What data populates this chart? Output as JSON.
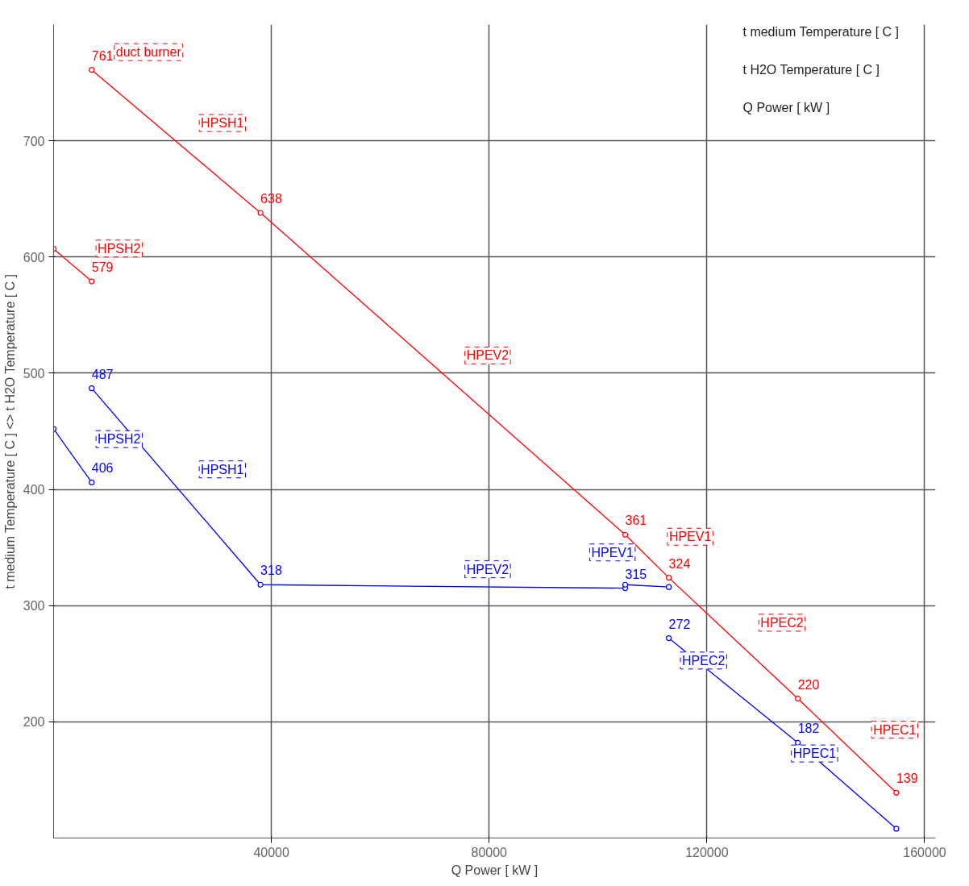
{
  "chart_data": {
    "type": "line",
    "xlabel": "Q Power [ kW ]",
    "ylabel": "t medium Temperature [ C ] <> t H2O Temperature [ C ]",
    "xlim": [
      0,
      162000
    ],
    "ylim": [
      100,
      800
    ],
    "xticks": [
      40000,
      80000,
      120000,
      160000
    ],
    "yticks": [
      200,
      300,
      400,
      500,
      600,
      700
    ],
    "grid": true,
    "marker": "circle",
    "line_style": "solid",
    "series": [
      {
        "color": "#ff0000",
        "x": [
          7000,
          38000,
          105000,
          113000,
          136700,
          154800
        ],
        "values": [
          761,
          638,
          361,
          324,
          220,
          139
        ],
        "value_labels": [
          "761",
          "638",
          "361",
          "324",
          "220",
          "139"
        ]
      },
      {
        "color": "#ff0000",
        "x": [
          0,
          7000
        ],
        "values": [
          607,
          579
        ],
        "value_labels": [
          null,
          "579"
        ]
      },
      {
        "color": "#0000ff",
        "x": [
          0,
          7000
        ],
        "values": [
          452,
          406
        ],
        "value_labels": [
          null,
          "406"
        ]
      },
      {
        "color": "#0000ff",
        "x": [
          7000,
          38000,
          105000,
          105000,
          113000
        ],
        "values": [
          487,
          318,
          315,
          318,
          316
        ],
        "value_labels": [
          "487",
          "318",
          "315",
          null,
          null
        ]
      },
      {
        "color": "#0000ff",
        "x": [
          113000,
          136700,
          154800
        ],
        "values": [
          272,
          182,
          108
        ],
        "value_labels": [
          "272",
          "182",
          null
        ]
      }
    ],
    "annotations": [
      {
        "text": "duct burner",
        "x": 7000,
        "y": 761
      },
      {
        "text": "HPSH1",
        "x": 22600,
        "y": 700
      },
      {
        "text": "HPSH2",
        "x": 3640,
        "y": 592
      },
      {
        "text": "HPEV2",
        "x": 71400,
        "y": 500
      },
      {
        "text": "HPEV1",
        "x": 108600,
        "y": 344
      },
      {
        "text": "HPEC2",
        "x": 125400,
        "y": 270
      },
      {
        "text": "HPEC1",
        "x": 146100,
        "y": 178
      },
      {
        "text": "HPSH2",
        "x": 3640,
        "y": 428
      },
      {
        "text": "HPSH1",
        "x": 22600,
        "y": 402
      },
      {
        "text": "HPEV2",
        "x": 71400,
        "y": 316
      },
      {
        "text": "HPEV1",
        "x": 108600,
        "y": 318
      },
      {
        "text": "HPEC2",
        "x": 125400,
        "y": 225
      },
      {
        "text": "HPEC1",
        "x": 145800,
        "y": 145
      },
      "t medium Temperature [ C ]",
      "t H2O Temperature [ C ]",
      "Q Power [ kW ]"
    ]
  }
}
